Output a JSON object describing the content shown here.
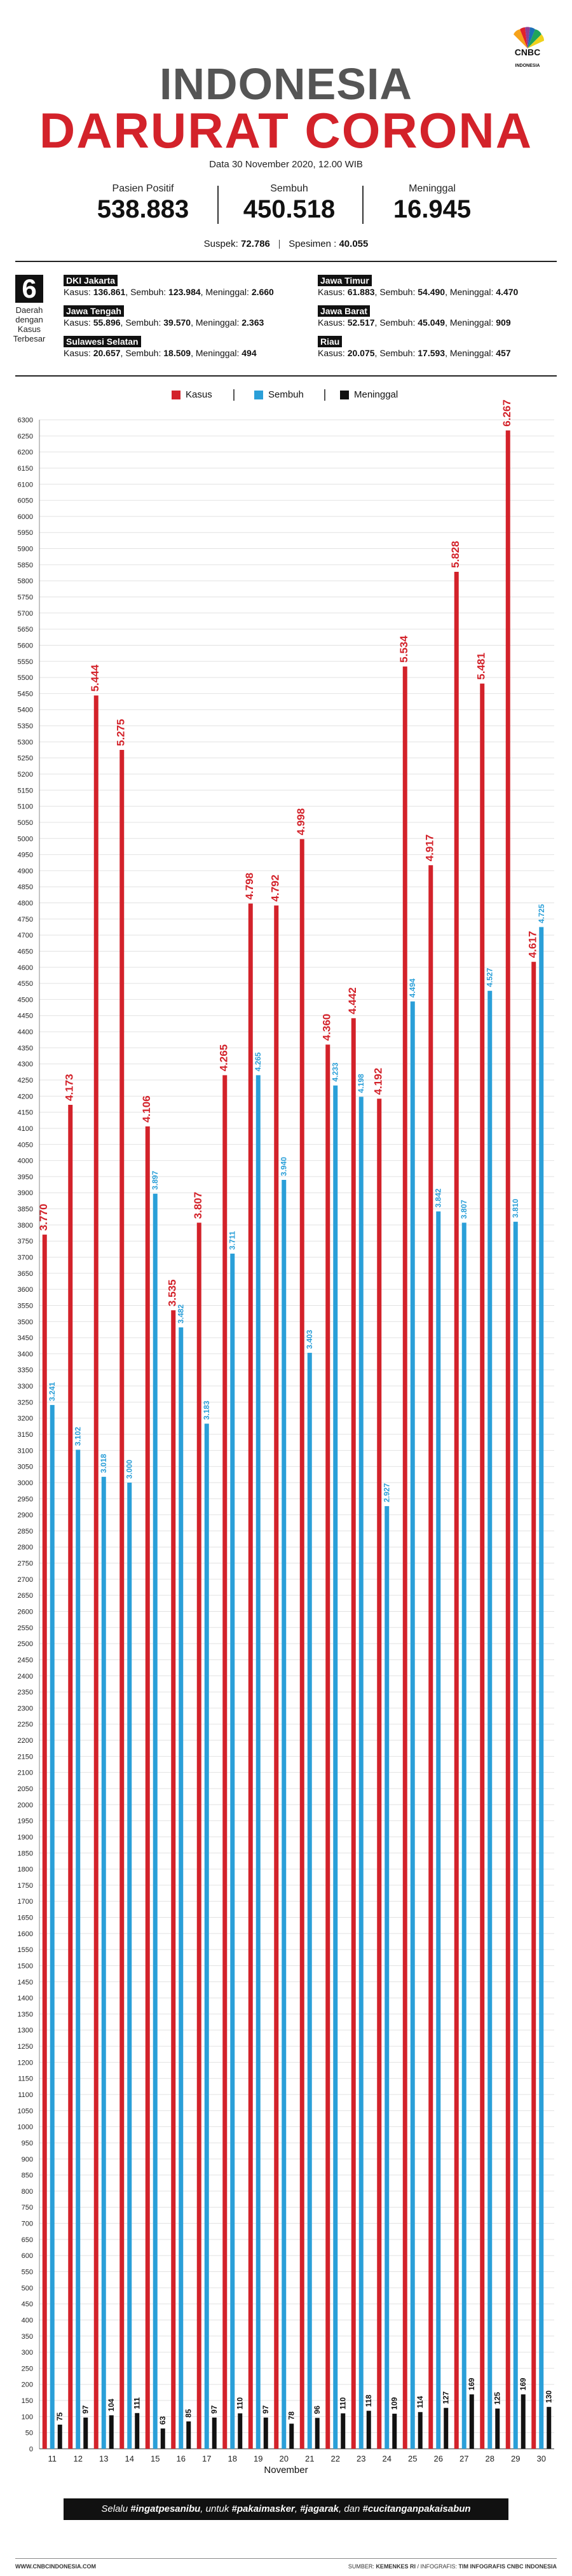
{
  "logo": {
    "brand": "CNBC",
    "sub": "INDONESIA"
  },
  "header": {
    "title_line1": "INDONESIA",
    "title_line2": "DARURAT CORONA",
    "date": "Data 30 November 2020, 12.00 WIB"
  },
  "stats": {
    "positive_label": "Pasien Positif",
    "positive_value": "538.883",
    "recovered_label": "Sembuh",
    "recovered_value": "450.518",
    "deaths_label": "Meninggal",
    "deaths_value": "16.945"
  },
  "suspect": {
    "suspek_label": "Suspek:",
    "suspek_value": "72.786",
    "spesimen_label": "Spesimen :",
    "spesimen_value": "40.055"
  },
  "regions": {
    "count": "6",
    "label_line1": "Daerah",
    "label_line2": "dengan",
    "label_line3": "Kasus",
    "label_line4": "Terbesar",
    "items": [
      {
        "name": "DKI Jakarta",
        "kasus_label": "Kasus:",
        "kasus": "136.861",
        "sembuh_label": "Sembuh:",
        "sembuh": "123.984",
        "meninggal_label": "Meninggal:",
        "meninggal": "2.660"
      },
      {
        "name": "Jawa Timur",
        "kasus_label": "Kasus:",
        "kasus": "61.883",
        "sembuh_label": "Sembuh:",
        "sembuh": "54.490",
        "meninggal_label": "Meninggal:",
        "meninggal": "4.470"
      },
      {
        "name": "Jawa Tengah",
        "kasus_label": "Kasus:",
        "kasus": "55.896",
        "sembuh_label": "Sembuh:",
        "sembuh": "39.570",
        "meninggal_label": "Meninggal:",
        "meninggal": "2.363"
      },
      {
        "name": "Jawa Barat",
        "kasus_label": "Kasus:",
        "kasus": "52.517",
        "sembuh_label": "Sembuh:",
        "sembuh": "45.049",
        "meninggal_label": "Meninggal:",
        "meninggal": "909"
      },
      {
        "name": "Sulawesi Selatan",
        "kasus_label": "Kasus:",
        "kasus": "20.657",
        "sembuh_label": "Sembuh:",
        "sembuh": "18.509",
        "meninggal_label": "Meninggal:",
        "meninggal": "494"
      },
      {
        "name": "Riau",
        "kasus_label": "Kasus:",
        "kasus": "20.075",
        "sembuh_label": "Sembuh:",
        "sembuh": "17.593",
        "meninggal_label": "Meninggal:",
        "meninggal": "457"
      }
    ]
  },
  "chart_data": {
    "type": "bar",
    "title": "",
    "xlabel": "November",
    "ylabel": "",
    "ylim": [
      0,
      6300
    ],
    "ytick_step": 50,
    "grid": true,
    "legend_position": "top",
    "categories": [
      "11",
      "12",
      "13",
      "14",
      "15",
      "16",
      "17",
      "18",
      "19",
      "20",
      "21",
      "22",
      "23",
      "24",
      "25",
      "26",
      "27",
      "28",
      "29",
      "30"
    ],
    "series": [
      {
        "name": "Kasus",
        "color": "#d3222a",
        "values": [
          3770,
          4173,
          5444,
          5275,
          4106,
          3535,
          3807,
          4265,
          4798,
          4792,
          4998,
          4360,
          4442,
          4192,
          5534,
          4917,
          5828,
          5481,
          6267,
          4617
        ],
        "labels": [
          "3.770",
          "4.173",
          "5.444",
          "5.275",
          "4.106",
          "3.535",
          "3.807",
          "4.265",
          "4.798",
          "4.792",
          "4.998",
          "4.360",
          "4.442",
          "4.192",
          "5.534",
          "4.917",
          "5.828",
          "5.481",
          "6.267",
          "4.617"
        ]
      },
      {
        "name": "Sembuh",
        "color": "#2a9fd8",
        "values": [
          3241,
          3102,
          3018,
          3000,
          3897,
          3482,
          3183,
          3711,
          4265,
          3940,
          3403,
          4233,
          4198,
          2927,
          4494,
          3842,
          3807,
          4527,
          3810,
          4725
        ],
        "labels": [
          "3.241",
          "3.102",
          "3.018",
          "3.000",
          "3.897",
          "3.482",
          "3.183",
          "3.711",
          "4.265",
          "3.940",
          "3.403",
          "4.233",
          "4.198",
          "2.927",
          "4.494",
          "3.842",
          "3.807",
          "4.527",
          "3.810",
          "4.725"
        ]
      },
      {
        "name": "Meninggal",
        "color": "#111111",
        "values": [
          75,
          97,
          104,
          111,
          63,
          85,
          97,
          110,
          97,
          78,
          96,
          110,
          118,
          109,
          114,
          127,
          169,
          125,
          169,
          130
        ],
        "labels": [
          "75",
          "97",
          "104",
          "111",
          "63",
          "85",
          "97",
          "110",
          "97",
          "78",
          "96",
          "110",
          "118",
          "109",
          "114",
          "127",
          "169",
          "125",
          "169",
          "130"
        ]
      }
    ]
  },
  "footer": {
    "hashtag_prefix": "Selalu",
    "hashtag1": "#ingatpesanibu",
    "hashtag_mid1": ", untuk",
    "hashtag2": "#pakaimasker",
    "hashtag_mid2": ",",
    "hashtag3": "#jagarak",
    "hashtag_mid3": ", dan",
    "hashtag4": "#cucitanganpakaisabun",
    "website": "WWW.CNBCINDONESIA.COM",
    "source_label": "SUMBER:",
    "source": "KEMENKES RI",
    "infografis_label": "INFOGRAFIS:",
    "infografis": "TIM INFOGRAFIS CNBC INDONESIA"
  },
  "colors": {
    "red": "#d3222a",
    "blue": "#2a9fd8",
    "dark": "#111111",
    "gray_title": "#555555"
  }
}
